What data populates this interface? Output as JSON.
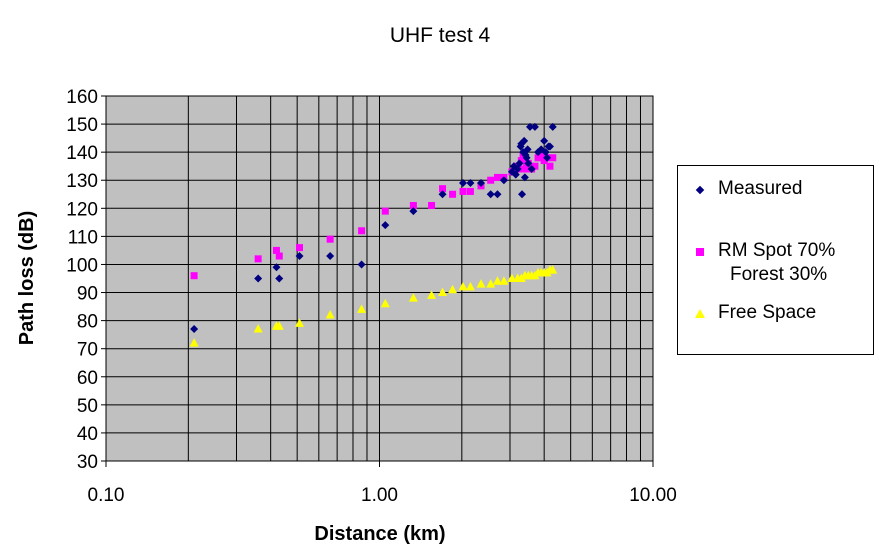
{
  "chart_data": {
    "type": "scatter",
    "title": "UHF test 4",
    "xlabel": "Distance (km)",
    "ylabel": "Path loss (dB)",
    "xscale": "log",
    "xlim": [
      0.1,
      10
    ],
    "ylim": [
      30,
      160
    ],
    "xticks": [
      "0.10",
      "1.00",
      "10.00"
    ],
    "yticks": [
      "30",
      "40",
      "50",
      "60",
      "70",
      "80",
      "90",
      "100",
      "110",
      "120",
      "130",
      "140",
      "150",
      "160"
    ],
    "grid": true,
    "legend_position": "right",
    "series": [
      {
        "name": "Measured",
        "marker": "diamond",
        "color": "#000080",
        "points": [
          [
            0.21,
            77
          ],
          [
            0.36,
            95
          ],
          [
            0.42,
            99
          ],
          [
            0.43,
            95
          ],
          [
            0.51,
            103
          ],
          [
            0.66,
            103
          ],
          [
            0.86,
            100
          ],
          [
            1.05,
            114
          ],
          [
            1.33,
            119
          ],
          [
            1.7,
            125
          ],
          [
            2.02,
            129
          ],
          [
            2.15,
            129
          ],
          [
            2.35,
            129
          ],
          [
            2.55,
            125
          ],
          [
            2.7,
            125
          ],
          [
            2.85,
            130
          ],
          [
            3.05,
            133
          ],
          [
            3.1,
            135
          ],
          [
            3.15,
            132
          ],
          [
            3.2,
            134
          ],
          [
            3.25,
            136
          ],
          [
            3.28,
            142
          ],
          [
            3.3,
            143
          ],
          [
            3.32,
            125
          ],
          [
            3.35,
            140
          ],
          [
            3.38,
            144
          ],
          [
            3.4,
            131
          ],
          [
            3.42,
            139
          ],
          [
            3.45,
            138
          ],
          [
            3.48,
            141
          ],
          [
            3.5,
            136
          ],
          [
            3.55,
            149
          ],
          [
            3.6,
            134
          ],
          [
            3.7,
            149
          ],
          [
            3.8,
            140
          ],
          [
            3.9,
            141
          ],
          [
            4.0,
            144
          ],
          [
            4.05,
            140
          ],
          [
            4.1,
            138
          ],
          [
            4.15,
            142
          ],
          [
            4.2,
            142
          ],
          [
            4.3,
            149
          ]
        ]
      },
      {
        "name": "RM Spot 70% Forest 30%",
        "marker": "square",
        "color": "#ff00ff",
        "points": [
          [
            0.21,
            96
          ],
          [
            0.36,
            102
          ],
          [
            0.42,
            105
          ],
          [
            0.43,
            103
          ],
          [
            0.51,
            106
          ],
          [
            0.66,
            109
          ],
          [
            0.86,
            112
          ],
          [
            1.05,
            119
          ],
          [
            1.33,
            121
          ],
          [
            1.55,
            121
          ],
          [
            1.7,
            127
          ],
          [
            1.85,
            125
          ],
          [
            2.02,
            126
          ],
          [
            2.15,
            126
          ],
          [
            2.35,
            128
          ],
          [
            2.55,
            130
          ],
          [
            2.7,
            131
          ],
          [
            2.85,
            131
          ],
          [
            3.05,
            133
          ],
          [
            3.1,
            133
          ],
          [
            3.2,
            135
          ],
          [
            3.25,
            134
          ],
          [
            3.3,
            137
          ],
          [
            3.35,
            139
          ],
          [
            3.4,
            134
          ],
          [
            3.45,
            136
          ],
          [
            3.5,
            136
          ],
          [
            3.6,
            134
          ],
          [
            3.7,
            135
          ],
          [
            3.8,
            138
          ],
          [
            3.9,
            139
          ],
          [
            4.0,
            137
          ],
          [
            4.1,
            138
          ],
          [
            4.2,
            135
          ],
          [
            4.3,
            138
          ]
        ]
      },
      {
        "name": "Free Space",
        "marker": "triangle",
        "color": "#ffff00",
        "points": [
          [
            0.21,
            72
          ],
          [
            0.36,
            77
          ],
          [
            0.42,
            78
          ],
          [
            0.43,
            78
          ],
          [
            0.51,
            79
          ],
          [
            0.66,
            82
          ],
          [
            0.86,
            84
          ],
          [
            1.05,
            86
          ],
          [
            1.33,
            88
          ],
          [
            1.55,
            89
          ],
          [
            1.7,
            90
          ],
          [
            1.85,
            91
          ],
          [
            2.02,
            92
          ],
          [
            2.15,
            92
          ],
          [
            2.35,
            93
          ],
          [
            2.55,
            93
          ],
          [
            2.7,
            94
          ],
          [
            2.85,
            94
          ],
          [
            3.05,
            95
          ],
          [
            3.2,
            95
          ],
          [
            3.3,
            95
          ],
          [
            3.4,
            96
          ],
          [
            3.5,
            96
          ],
          [
            3.6,
            96
          ],
          [
            3.7,
            96
          ],
          [
            3.8,
            97
          ],
          [
            3.9,
            97
          ],
          [
            4.0,
            97
          ],
          [
            4.1,
            97
          ],
          [
            4.2,
            98
          ],
          [
            4.3,
            98
          ]
        ]
      }
    ]
  },
  "legend": {
    "items": [
      {
        "line1": "Measured",
        "line2": ""
      },
      {
        "line1": "RM Spot 70%",
        "line2": "Forest 30%"
      },
      {
        "line1": "Free Space",
        "line2": ""
      }
    ]
  }
}
